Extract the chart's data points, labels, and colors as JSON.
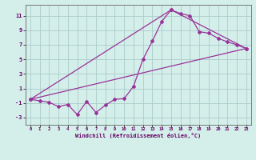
{
  "line1_x": [
    0,
    1,
    2,
    3,
    4,
    5,
    6,
    7,
    8,
    9,
    10,
    11,
    12,
    13,
    14,
    15,
    16,
    17,
    18,
    19,
    20,
    21,
    22,
    23
  ],
  "line1_y": [
    -0.5,
    -0.7,
    -0.9,
    -1.5,
    -1.2,
    -2.6,
    -0.8,
    -2.3,
    -1.3,
    -0.5,
    -0.4,
    1.3,
    5.0,
    7.5,
    10.2,
    11.8,
    11.3,
    11.0,
    8.8,
    8.6,
    7.9,
    7.4,
    7.0,
    6.5
  ],
  "line2_x": [
    0,
    23
  ],
  "line2_y": [
    -0.5,
    6.5
  ],
  "line3_x": [
    0,
    15,
    23
  ],
  "line3_y": [
    -0.5,
    11.8,
    6.5
  ],
  "color": "#993399",
  "bg_color": "#d4eeea",
  "grid_color": "#aacccc",
  "xlabel": "Windchill (Refroidissement éolien,°C)",
  "xlim": [
    -0.5,
    23.5
  ],
  "ylim": [
    -4,
    12.5
  ],
  "xticks": [
    0,
    1,
    2,
    3,
    4,
    5,
    6,
    7,
    8,
    9,
    10,
    11,
    12,
    13,
    14,
    15,
    16,
    17,
    18,
    19,
    20,
    21,
    22,
    23
  ],
  "yticks": [
    -3,
    -1,
    1,
    3,
    5,
    7,
    9,
    11
  ]
}
